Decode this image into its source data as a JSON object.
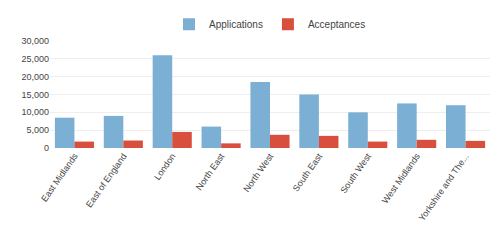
{
  "chart_data": {
    "type": "bar",
    "categories": [
      "East Midlands",
      "East of England",
      "London",
      "North East",
      "North West",
      "South East",
      "South West",
      "West Midlands",
      "Yorkshire and The..."
    ],
    "series": [
      {
        "name": "Applications",
        "color": "#7BAFD4",
        "values": [
          8500,
          9000,
          26000,
          6000,
          18500,
          15000,
          10000,
          12500,
          12000
        ]
      },
      {
        "name": "Acceptances",
        "color": "#D94F3D",
        "values": [
          1800,
          2100,
          4500,
          1300,
          3700,
          3400,
          1800,
          2300,
          2000
        ]
      }
    ],
    "ylim": [
      0,
      30000
    ],
    "yticks": [
      0,
      {
        "value": 5000,
        "label": "5,000"
      },
      {
        "value": 10000,
        "label": "10,000"
      },
      {
        "value": 15000,
        "label": "15,000"
      },
      {
        "value": 20000,
        "label": "20,000"
      },
      {
        "value": 25000,
        "label": "25,000"
      },
      {
        "value": 30000,
        "label": "30,000"
      }
    ],
    "grid": true,
    "legend": "top"
  }
}
